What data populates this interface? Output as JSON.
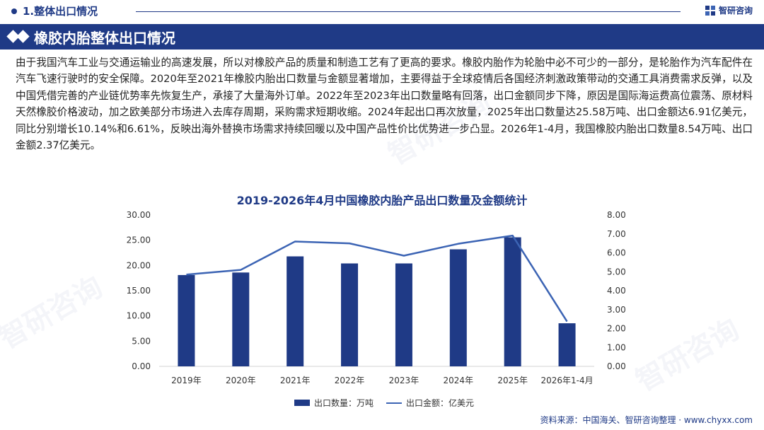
{
  "header": {
    "section_label": "1.整体出口情况",
    "brand": "智研咨询"
  },
  "title": "橡胶内胎整体出口情况",
  "paragraph": "由于我国汽车工业与交通运输业的高速发展，所以对橡胶产品的质量和制造工艺有了更高的要求。橡胶内胎作为轮胎中必不可少的一部分，是轮胎作为汽车配件在汽车飞速行驶时的安全保障。2020年至2021年橡胶内胎出口数量与金额显著增加，主要得益于全球疫情后各国经济刺激政策带动的交通工具消费需求反弹，以及中国凭借完善的产业链优势率先恢复生产，承接了大量海外订单。2022年至2023年出口数量略有回落，出口金额同步下降，原因是国际海运费高位震荡、原材料天然橡胶价格波动，加之欧美部分市场进入去库存周期，采购需求短期收缩。2024年起出口再次放量，2025年出口数量达25.58万吨、出口金额达6.91亿美元，同比分别增长10.14%和6.61%，反映出海外替换市场需求持续回暖以及中国产品性价比优势进一步凸显。2026年1-4月，我国橡胶内胎出口数量8.54万吨、出口金额2.37亿美元。",
  "chart_data": {
    "type": "bar",
    "title": "2019-2026年4月中国橡胶内胎产品出口数量及金额统计",
    "categories": [
      "2019年",
      "2020年",
      "2021年",
      "2022年",
      "2023年",
      "2024年",
      "2025年",
      "2026年1-4月"
    ],
    "series": [
      {
        "name": "出口数量：万吨",
        "type": "bar",
        "axis": "left",
        "color": "#1f3a86",
        "values": [
          18.1,
          18.6,
          21.8,
          20.4,
          20.4,
          23.2,
          25.58,
          8.54
        ]
      },
      {
        "name": "出口金额：亿美元",
        "type": "line",
        "axis": "right",
        "color": "#3c64b4",
        "values": [
          4.85,
          5.1,
          6.6,
          6.5,
          5.85,
          6.48,
          6.91,
          2.37
        ]
      }
    ],
    "y_left": {
      "ylim": [
        0,
        30
      ],
      "ticks": [
        "0.00",
        "5.00",
        "10.00",
        "15.00",
        "20.00",
        "25.00",
        "30.00"
      ]
    },
    "y_right": {
      "ylim": [
        0,
        8
      ],
      "ticks": [
        "0.00",
        "1.00",
        "2.00",
        "3.00",
        "4.00",
        "5.00",
        "6.00",
        "7.00",
        "8.00"
      ]
    },
    "grid": false,
    "legend": "bottom"
  },
  "source": "资料来源：中国海关、智研咨询整理 · www.chyxx.com",
  "watermark": "智研咨询"
}
